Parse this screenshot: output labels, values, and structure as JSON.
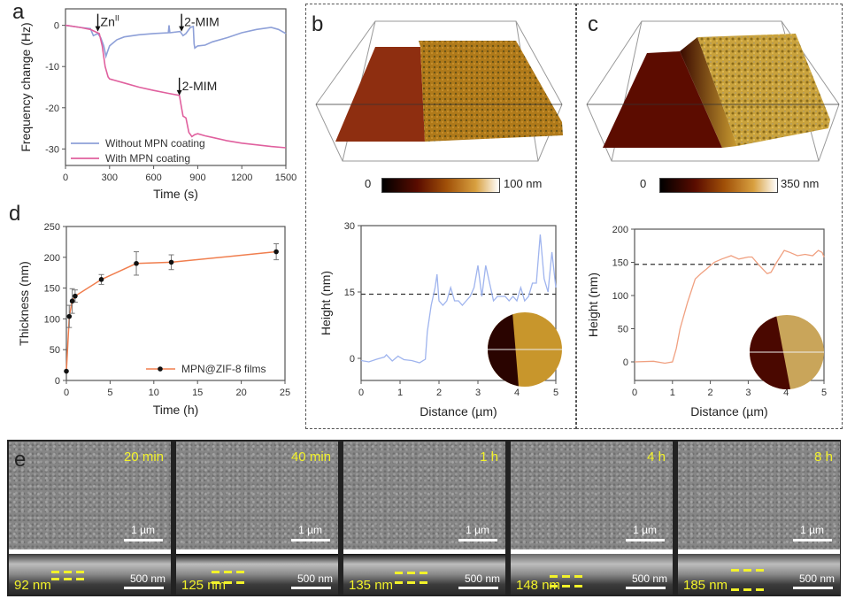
{
  "figure": {
    "panels": {
      "a": {
        "letter": "a"
      },
      "b": {
        "letter": "b",
        "colorbar_min": "0",
        "colorbar_max": "100 nm"
      },
      "c": {
        "letter": "c",
        "colorbar_min": "0",
        "colorbar_max": "350 nm"
      },
      "d": {
        "letter": "d"
      },
      "e": {
        "letter": "e"
      }
    },
    "sem_images": [
      {
        "time": "20 min",
        "top_scale": "1 µm",
        "cross_scale": "500 nm",
        "thickness": "92 nm"
      },
      {
        "time": "40 min",
        "top_scale": "1 µm",
        "cross_scale": "500 nm",
        "thickness": "125 nm"
      },
      {
        "time": "1 h",
        "top_scale": "1 µm",
        "cross_scale": "500 nm",
        "thickness": "135 nm"
      },
      {
        "time": "4 h",
        "top_scale": "1 µm",
        "cross_scale": "500 nm",
        "thickness": "148 nm"
      },
      {
        "time": "8 h",
        "top_scale": "1 µm",
        "cross_scale": "500 nm",
        "thickness": "185 nm"
      }
    ],
    "colors": {
      "without_mpn": "#8ea0d8",
      "with_mpn": "#e0609e",
      "thickness_line": "#f07e4e",
      "afm_b_profile": "#9fb4ee",
      "afm_c_profile": "#f0a080",
      "sem_label": "#f2f22a"
    }
  },
  "chart_data": [
    {
      "id": "a",
      "type": "line",
      "title": "",
      "xlabel": "Time (s)",
      "ylabel": "Frequency change (Hz)",
      "xlim": [
        0,
        1500
      ],
      "ylim": [
        -34,
        4
      ],
      "xticks": [
        "0",
        "300",
        "600",
        "900",
        "1200",
        "1500"
      ],
      "yticks": [
        "0",
        "-10",
        "-20",
        "-30"
      ],
      "legend": {
        "position": "bottom-left",
        "entries": [
          "Without MPN coating",
          "With MPN coating"
        ]
      },
      "annotations": [
        {
          "text": "Zn",
          "sup": "II",
          "x": 220,
          "y_target": -1.5
        },
        {
          "text": "2-MIM",
          "x": 790,
          "y_target": -1.5
        },
        {
          "text": "2-MIM",
          "x": 775,
          "y_target": -17
        }
      ],
      "series": [
        {
          "name": "Without MPN coating",
          "x": [
            0,
            100,
            170,
            190,
            220,
            240,
            260,
            275,
            285,
            300,
            350,
            400,
            500,
            600,
            700,
            705,
            710,
            780,
            800,
            820,
            850,
            870,
            875,
            880,
            900,
            950,
            1000,
            1100,
            1200,
            1300,
            1400,
            1450,
            1500
          ],
          "values": [
            0,
            -0.5,
            -0.8,
            -2.5,
            -2.0,
            -3.0,
            -5.0,
            -7.5,
            -6.5,
            -5.0,
            -3.5,
            -2.8,
            -2.3,
            -2.0,
            -1.8,
            0.0,
            -1.8,
            -1.5,
            -2.5,
            -2.0,
            -0.5,
            -0.3,
            -4.5,
            -5.5,
            -5.0,
            -4.8,
            -4.0,
            -3.0,
            -1.8,
            -1.0,
            -0.5,
            -1.0,
            -2.0
          ]
        },
        {
          "name": "With MPN coating",
          "x": [
            0,
            100,
            170,
            200,
            230,
            250,
            270,
            290,
            300,
            400,
            500,
            600,
            700,
            775,
            790,
            800,
            820,
            840,
            860,
            880,
            900,
            950,
            1000,
            1100,
            1200,
            1300,
            1400,
            1500
          ],
          "values": [
            0,
            -0.5,
            -1.0,
            -1.5,
            -2.0,
            -5.0,
            -10.0,
            -12.5,
            -13.0,
            -14.0,
            -15.0,
            -15.8,
            -16.5,
            -17.0,
            -20.0,
            -22.0,
            -22.5,
            -26.0,
            -27.0,
            -26.5,
            -26.3,
            -26.8,
            -27.2,
            -28.0,
            -28.6,
            -29.0,
            -29.4,
            -29.7
          ]
        }
      ]
    },
    {
      "id": "b-profile",
      "type": "line",
      "xlabel": "Distance (µm)",
      "ylabel": "Height (nm)",
      "xlim": [
        0,
        5
      ],
      "ylim": [
        -5,
        30
      ],
      "xticks": [
        "0",
        "1",
        "2",
        "3",
        "4",
        "5"
      ],
      "yticks": [
        "0",
        "15",
        "30"
      ],
      "reference_line": {
        "y": 14.5,
        "style": "dashed"
      },
      "series": [
        {
          "name": "profile",
          "x": [
            0,
            0.2,
            0.4,
            0.6,
            0.65,
            0.8,
            0.95,
            1.0,
            1.1,
            1.3,
            1.5,
            1.65,
            1.7,
            1.75,
            1.8,
            1.9,
            1.95,
            2.0,
            2.1,
            2.2,
            2.3,
            2.4,
            2.5,
            2.6,
            2.7,
            2.8,
            2.9,
            3.0,
            3.1,
            3.2,
            3.3,
            3.4,
            3.5,
            3.6,
            3.7,
            3.8,
            3.9,
            4.0,
            4.1,
            4.2,
            4.3,
            4.4,
            4.5,
            4.6,
            4.7,
            4.8,
            4.9,
            5.0
          ],
          "values": [
            -0.5,
            -0.8,
            -0.2,
            0.3,
            0.8,
            -0.6,
            0.5,
            0.2,
            -0.3,
            -0.5,
            -1.0,
            -0.2,
            6,
            9,
            12,
            16,
            19,
            13,
            12,
            13,
            16,
            13,
            13,
            12,
            13,
            14,
            16,
            21,
            14,
            21,
            17,
            13,
            14,
            14,
            14,
            13,
            14,
            13,
            16,
            13,
            14,
            17,
            17,
            28,
            18,
            15,
            24,
            16
          ]
        }
      ]
    },
    {
      "id": "c-profile",
      "type": "line",
      "xlabel": "Distance (µm)",
      "ylabel": "Height (nm)",
      "xlim": [
        0,
        5
      ],
      "ylim": [
        -28,
        200
      ],
      "xticks": [
        "0",
        "1",
        "2",
        "3",
        "4",
        "5"
      ],
      "yticks": [
        "0",
        "50",
        "100",
        "150",
        "200"
      ],
      "reference_line": {
        "y": 147,
        "style": "dashed"
      },
      "series": [
        {
          "name": "profile",
          "x": [
            0,
            0.5,
            0.8,
            1.0,
            1.1,
            1.2,
            1.4,
            1.6,
            1.75,
            1.9,
            2.1,
            2.3,
            2.55,
            2.75,
            3.0,
            3.1,
            3.3,
            3.5,
            3.6,
            3.75,
            3.95,
            4.1,
            4.3,
            4.5,
            4.7,
            4.85,
            4.95,
            5.0
          ],
          "values": [
            0,
            1,
            -2,
            0,
            20,
            50,
            90,
            125,
            133,
            140,
            150,
            155,
            160,
            155,
            158,
            158,
            145,
            133,
            135,
            150,
            168,
            165,
            160,
            162,
            160,
            168,
            165,
            158
          ]
        }
      ]
    },
    {
      "id": "d",
      "type": "line",
      "xlabel": "Time (h)",
      "ylabel": "Thickness (nm)",
      "xlim": [
        0,
        25
      ],
      "ylim": [
        0,
        250
      ],
      "xticks": [
        "0",
        "5",
        "10",
        "15",
        "20",
        "25"
      ],
      "yticks": [
        "0",
        "50",
        "100",
        "150",
        "200",
        "250"
      ],
      "legend": {
        "position": "bottom-right",
        "entries": [
          "MPN@ZIF-8 films"
        ]
      },
      "series": [
        {
          "name": "MPN@ZIF-8 films",
          "x": [
            0,
            0.33,
            0.67,
            1,
            4,
            8,
            12,
            24
          ],
          "values": [
            15,
            104,
            129,
            137,
            164,
            190,
            192,
            209
          ],
          "error": [
            0,
            18,
            20,
            10,
            8,
            19,
            12,
            13
          ]
        }
      ]
    }
  ]
}
